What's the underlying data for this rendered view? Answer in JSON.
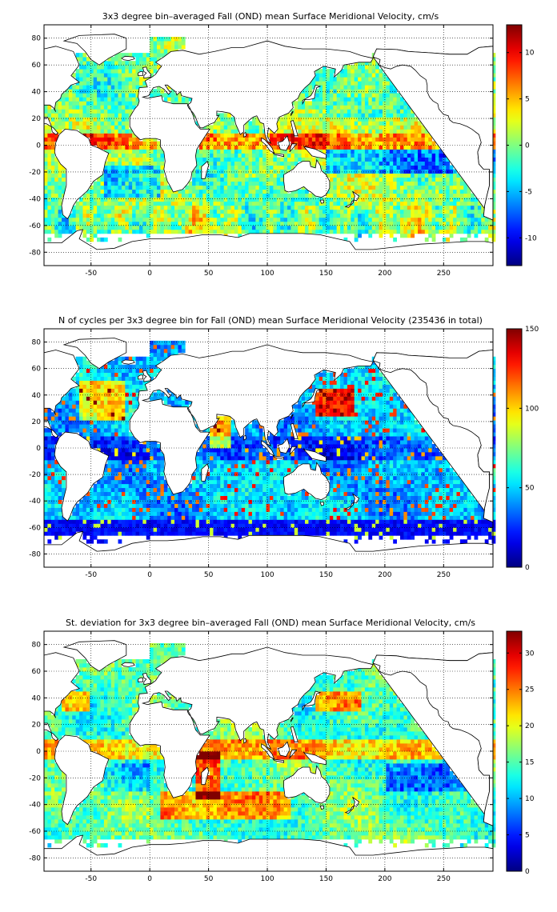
{
  "chart_data": [
    {
      "type": "heatmap",
      "title": "3x3 degree bin–averaged Fall (OND) mean Surface Meridional Velocity, cm/s",
      "xlim": [
        -90,
        292
      ],
      "ylim": [
        -90,
        90
      ],
      "x_ticks": [
        "-50",
        "0",
        "50",
        "100",
        "150",
        "200",
        "250"
      ],
      "y_ticks": [
        "80",
        "60",
        "40",
        "20",
        "0",
        "-20",
        "-40",
        "-60",
        "-80"
      ],
      "grid": true,
      "colorbar": {
        "min": -13,
        "max": 13,
        "ticks": [
          "10",
          "5",
          "0",
          "-5",
          "-10"
        ],
        "tick_values": [
          10,
          5,
          0,
          -5,
          -10
        ]
      },
      "bin_size_deg": 3
    },
    {
      "type": "heatmap",
      "title": "N of cycles per 3x3 degree bin for Fall (OND) mean Surface Meridional Velocity (235436 in total)",
      "xlim": [
        -90,
        292
      ],
      "ylim": [
        -90,
        90
      ],
      "x_ticks": [
        "-50",
        "0",
        "50",
        "100",
        "150",
        "200",
        "250"
      ],
      "y_ticks": [
        "80",
        "60",
        "40",
        "20",
        "0",
        "-20",
        "-40",
        "-60",
        "-80"
      ],
      "grid": true,
      "colorbar": {
        "min": 0,
        "max": 150,
        "ticks": [
          "150",
          "100",
          "50",
          "0"
        ],
        "tick_values": [
          150,
          100,
          50,
          0
        ]
      },
      "bin_size_deg": 3
    },
    {
      "type": "heatmap",
      "title": "St. deviation for 3x3 degree bin–averaged Fall (OND) mean Surface Meridional Velocity, cm/s",
      "xlim": [
        -90,
        292
      ],
      "ylim": [
        -90,
        90
      ],
      "x_ticks": [
        "-50",
        "0",
        "50",
        "100",
        "150",
        "200",
        "250"
      ],
      "y_ticks": [
        "80",
        "60",
        "40",
        "20",
        "0",
        "-20",
        "-40",
        "-60",
        "-80"
      ],
      "grid": true,
      "colorbar": {
        "min": 0,
        "max": 33,
        "ticks": [
          "30",
          "25",
          "20",
          "15",
          "10",
          "5",
          "0"
        ],
        "tick_values": [
          30,
          25,
          20,
          15,
          10,
          5,
          0
        ]
      },
      "bin_size_deg": 3
    }
  ],
  "colors": {
    "colormap": "jet",
    "land": "#ffffff",
    "frame": "#000000"
  }
}
